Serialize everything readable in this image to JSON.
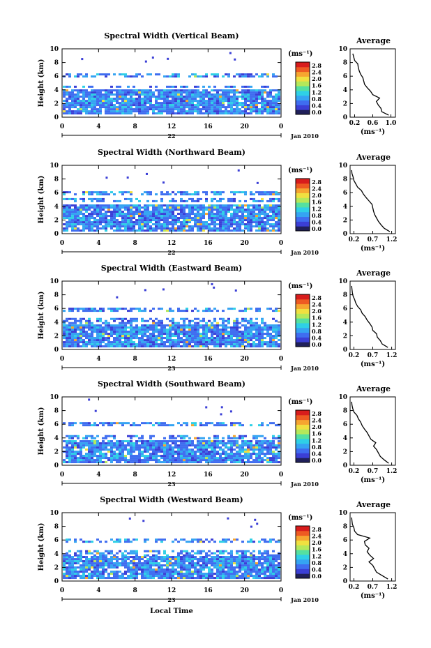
{
  "colorbar": {
    "unit_label": "(ms⁻¹)",
    "ticks": [
      "0.0",
      "0.4",
      "0.8",
      "1.2",
      "1.6",
      "2.0",
      "2.4",
      "2.8"
    ],
    "colors": [
      "#20205a",
      "#3b3fd6",
      "#3f6df0",
      "#35a4f2",
      "#2fd0e6",
      "#55e0a0",
      "#b5e85a",
      "#f0e040",
      "#f6a530",
      "#ee5a22",
      "#d81c1c"
    ]
  },
  "x_axis": {
    "ticks": [
      "0",
      "4",
      "8",
      "12",
      "16",
      "20",
      "0"
    ],
    "date_label": "Jan 2010",
    "xlabel": "Local Time"
  },
  "average_panel": {
    "title": "Average",
    "xlabel": "(ms⁻¹)",
    "yticks": [
      "0",
      "2",
      "4",
      "6",
      "8",
      "10"
    ]
  },
  "chart_data": [
    {
      "type": "heatmap",
      "title": "Spectral Width (Vertical Beam)",
      "ylabel": "Height (km)",
      "ylim": [
        0,
        10
      ],
      "yticks": [
        "0",
        "2",
        "4",
        "6",
        "8",
        "10"
      ],
      "xticks": [
        "0",
        "4",
        "8",
        "12",
        "16",
        "20",
        "0"
      ],
      "day_label": "22",
      "layers_km": [
        [
          0.4,
          3.8
        ],
        [
          4.3,
          4.6
        ],
        [
          5.8,
          6.2
        ]
      ],
      "average": {
        "xticks": [
          "0.2",
          "0.6",
          "1.0"
        ],
        "xlim": [
          0.1,
          1.1
        ],
        "heights": [
          0.3,
          0.8,
          1.3,
          1.8,
          2.3,
          2.8,
          3.3,
          3.8,
          4.3,
          4.8,
          5.3,
          5.8,
          6.3,
          6.8,
          7.3,
          7.8,
          8.3,
          8.8,
          9.3
        ],
        "values": [
          0.95,
          0.8,
          0.78,
          0.72,
          0.68,
          0.75,
          0.6,
          0.55,
          0.48,
          0.42,
          0.4,
          0.38,
          0.33,
          0.3,
          0.28,
          0.27,
          0.2,
          0.18,
          0.16
        ]
      }
    },
    {
      "type": "heatmap",
      "title": "Spectral Width (Northward Beam)",
      "ylabel": "Height (km)",
      "ylim": [
        0,
        10
      ],
      "yticks": [
        "0",
        "2",
        "4",
        "6",
        "8",
        "10"
      ],
      "xticks": [
        "0",
        "4",
        "8",
        "12",
        "16",
        "20",
        "0"
      ],
      "day_label": "22",
      "layers_km": [
        [
          0.3,
          4.0
        ],
        [
          4.6,
          5.0
        ],
        [
          5.6,
          6.2
        ]
      ],
      "average": {
        "xticks": [
          "0.2",
          "0.7",
          "1.2"
        ],
        "xlim": [
          0.1,
          1.3
        ],
        "heights": [
          0.3,
          0.8,
          1.3,
          1.8,
          2.3,
          2.8,
          3.3,
          3.8,
          4.3,
          4.8,
          5.3,
          5.8,
          6.3,
          6.8,
          7.3,
          7.8,
          8.3,
          8.8,
          9.3
        ],
        "values": [
          1.15,
          1.0,
          0.92,
          0.85,
          0.8,
          0.75,
          0.72,
          0.7,
          0.68,
          0.6,
          0.52,
          0.45,
          0.4,
          0.3,
          0.25,
          0.2,
          0.18,
          0.15,
          0.14
        ]
      }
    },
    {
      "type": "heatmap",
      "title": "Spectral Width (Eastward Beam)",
      "ylabel": "Height (km)",
      "ylim": [
        0,
        10
      ],
      "yticks": [
        "0",
        "2",
        "4",
        "6",
        "8",
        "10"
      ],
      "xticks": [
        "0",
        "4",
        "8",
        "12",
        "16",
        "20",
        "0"
      ],
      "day_label": "23",
      "layers_km": [
        [
          0.3,
          3.5
        ],
        [
          3.7,
          4.5
        ],
        [
          5.5,
          6.0
        ]
      ],
      "average": {
        "xticks": [
          "0.2",
          "0.7",
          "1.2"
        ],
        "xlim": [
          0.1,
          1.3
        ],
        "heights": [
          0.3,
          0.8,
          1.3,
          1.8,
          2.3,
          2.8,
          3.3,
          3.8,
          4.3,
          4.8,
          5.3,
          5.8,
          6.3,
          6.8,
          7.3,
          7.8,
          8.3,
          8.8,
          9.3
        ],
        "values": [
          1.1,
          0.95,
          0.9,
          0.82,
          0.8,
          0.7,
          0.68,
          0.62,
          0.55,
          0.5,
          0.42,
          0.38,
          0.3,
          0.25,
          0.22,
          0.18,
          0.16,
          0.15,
          0.14
        ]
      }
    },
    {
      "type": "heatmap",
      "title": "Spectral Width (Southward Beam)",
      "ylabel": "Height (km)",
      "ylim": [
        0,
        10
      ],
      "yticks": [
        "0",
        "2",
        "4",
        "6",
        "8",
        "10"
      ],
      "xticks": [
        "0",
        "4",
        "8",
        "12",
        "16",
        "20",
        "0"
      ],
      "day_label": "23",
      "layers_km": [
        [
          0.3,
          3.6
        ],
        [
          3.8,
          4.4
        ],
        [
          5.7,
          6.2
        ]
      ],
      "average": {
        "xticks": [
          "0.2",
          "0.7",
          "1.2"
        ],
        "xlim": [
          0.1,
          1.3
        ],
        "heights": [
          0.3,
          0.8,
          1.3,
          1.8,
          2.3,
          2.8,
          3.3,
          3.8,
          4.3,
          4.8,
          5.3,
          5.8,
          6.3,
          6.8,
          7.3,
          7.8,
          8.3,
          8.8,
          9.3
        ],
        "values": [
          1.12,
          1.0,
          0.9,
          0.85,
          0.8,
          0.72,
          0.78,
          0.65,
          0.6,
          0.55,
          0.48,
          0.42,
          0.38,
          0.32,
          0.28,
          0.2,
          0.17,
          0.15,
          0.14
        ]
      }
    },
    {
      "type": "heatmap",
      "title": "Spectral Width (Westward Beam)",
      "ylabel": "Height (km)",
      "ylim": [
        0,
        10
      ],
      "yticks": [
        "0",
        "2",
        "4",
        "6",
        "8",
        "10"
      ],
      "xticks": [
        "0",
        "4",
        "8",
        "12",
        "16",
        "20",
        "0"
      ],
      "day_label": "23",
      "layers_km": [
        [
          0.3,
          3.4
        ],
        [
          3.6,
          4.3
        ],
        [
          5.6,
          6.2
        ]
      ],
      "average": {
        "xticks": [
          "0.2",
          "0.7",
          "1.2"
        ],
        "xlim": [
          0.1,
          1.3
        ],
        "heights": [
          0.3,
          0.8,
          1.3,
          1.8,
          2.3,
          2.8,
          3.3,
          3.8,
          4.3,
          4.8,
          5.3,
          5.8,
          6.3,
          6.8,
          7.3,
          7.8,
          8.3,
          8.8,
          9.3
        ],
        "values": [
          1.1,
          0.95,
          0.8,
          0.75,
          0.7,
          0.6,
          0.72,
          0.62,
          0.55,
          0.6,
          0.5,
          0.48,
          0.62,
          0.3,
          0.22,
          0.2,
          0.16,
          0.15,
          0.14
        ]
      }
    }
  ]
}
